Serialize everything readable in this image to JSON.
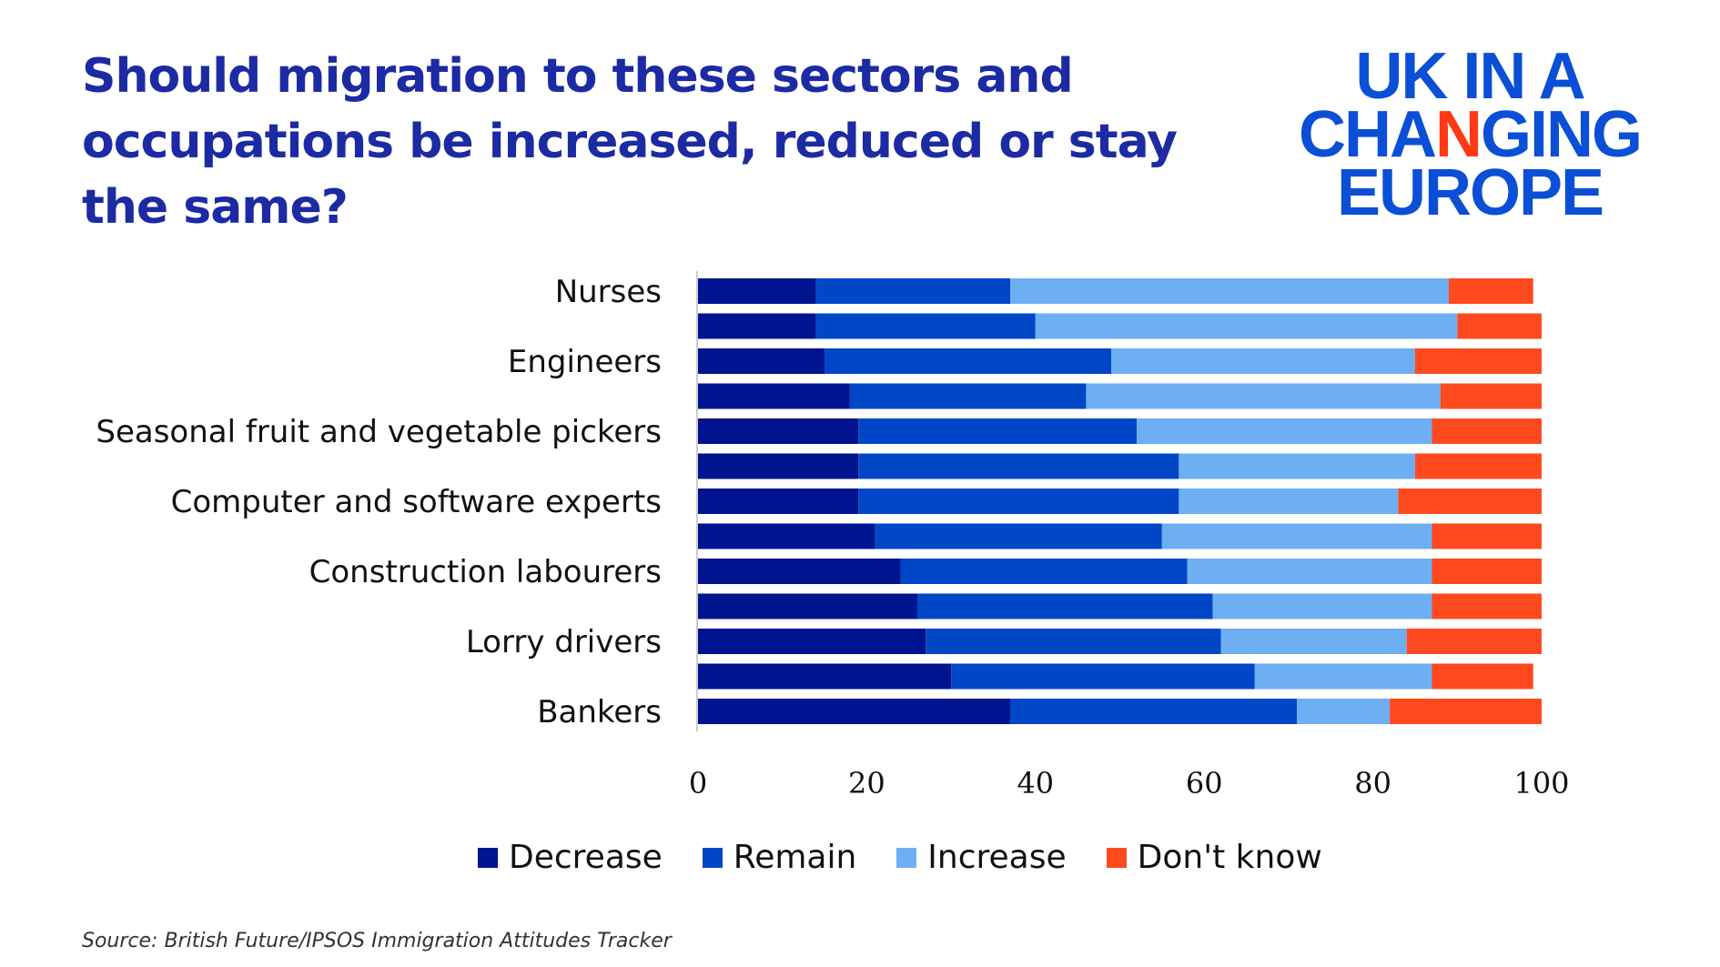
{
  "title": "Should migration to these sectors and occupations be increased, reduced or stay the same?",
  "logo": {
    "line1": "UK IN A",
    "line2a": "CHA",
    "line2b": "N",
    "line2c": "GING",
    "line3": "EUROPE"
  },
  "source": "Source: British Future/IPSOS Immigration Attitudes Tracker",
  "chart_data": {
    "type": "bar",
    "orientation": "horizontal",
    "stacked": true,
    "categories": [
      "Nurses",
      "",
      "Engineers",
      "",
      "Seasonal fruit and vegetable pickers",
      "",
      "Computer and software experts",
      "",
      "Construction labourers",
      "",
      "Lorry drivers",
      "",
      "Bankers"
    ],
    "series": [
      {
        "name": "Decrease",
        "color": "#00148f",
        "values": [
          14,
          14,
          15,
          18,
          19,
          19,
          19,
          21,
          24,
          26,
          27,
          30,
          37
        ]
      },
      {
        "name": "Remain",
        "color": "#0047c8",
        "values": [
          23,
          26,
          34,
          28,
          33,
          38,
          38,
          34,
          34,
          35,
          35,
          36,
          34
        ]
      },
      {
        "name": "Increase",
        "color": "#6eaef2",
        "values": [
          52,
          50,
          36,
          42,
          35,
          28,
          26,
          32,
          29,
          26,
          22,
          21,
          11
        ]
      },
      {
        "name": "Don't know",
        "color": "#ff4a1f",
        "values": [
          10,
          10,
          15,
          12,
          13,
          15,
          17,
          13,
          13,
          13,
          16,
          12,
          18
        ]
      }
    ],
    "xlim": [
      0,
      100
    ],
    "xticks": [
      "0",
      "20",
      "40",
      "60",
      "80",
      "100"
    ],
    "grid": false,
    "legend_position": "bottom"
  }
}
